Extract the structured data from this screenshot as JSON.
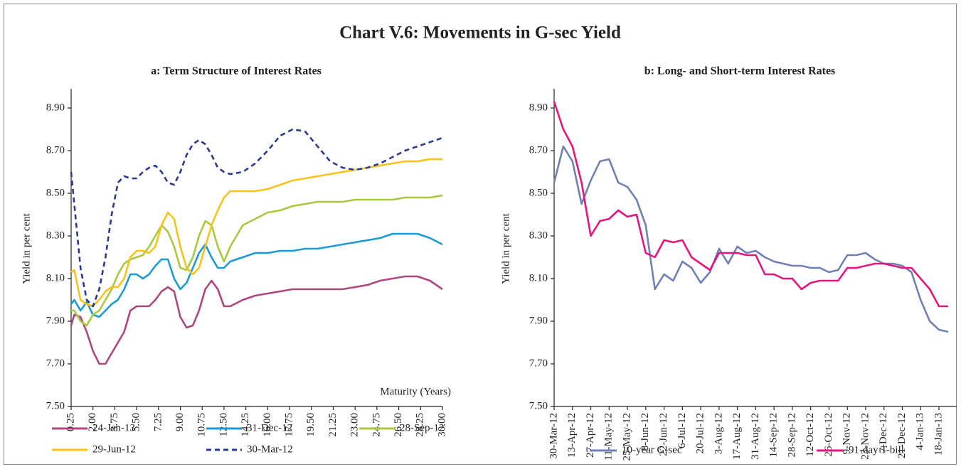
{
  "title": "Chart V.6: Movements in G-sec Yield",
  "chart_data": [
    {
      "type": "line",
      "title": "a: Term Structure of Interest Rates",
      "ylabel": "Yield in per cent",
      "xlabel": "Maturity (Years)",
      "grid": false,
      "xlim": [
        0.25,
        30
      ],
      "ylim": [
        7.5,
        8.9
      ],
      "xticks": [
        0.25,
        {
          "value": 2,
          "label": "2.00"
        },
        3.75,
        {
          "value": 5.5,
          "label": "5.50"
        },
        7.25,
        {
          "value": 9,
          "label": "9.00"
        },
        10.75,
        {
          "value": 12.5,
          "label": "12.50"
        },
        14.25,
        {
          "value": 16,
          "label": "16.00"
        },
        17.75,
        {
          "value": 19.5,
          "label": "19.50"
        },
        21.25,
        {
          "value": 23,
          "label": "23.00"
        },
        24.75,
        {
          "value": 26.5,
          "label": "26.50"
        },
        28.25,
        {
          "value": 30,
          "label": "30.00"
        }
      ],
      "yticks": [
        {
          "value": 7.5,
          "label": "7.50"
        },
        {
          "value": 7.7,
          "label": "7.70"
        },
        {
          "value": 7.9,
          "label": "7.90"
        },
        {
          "value": 8.1,
          "label": "8.10"
        },
        {
          "value": 8.3,
          "label": "8.30"
        },
        {
          "value": 8.5,
          "label": "8.50"
        },
        {
          "value": 8.7,
          "label": "8.70"
        },
        {
          "value": 8.9,
          "label": "8.90"
        }
      ],
      "x": [
        0.25,
        0.5,
        1,
        1.5,
        2,
        2.5,
        3,
        3.5,
        4,
        4.5,
        5,
        5.5,
        6,
        6.5,
        7,
        7.5,
        8,
        8.5,
        9,
        9.5,
        10,
        10.5,
        11,
        11.5,
        12,
        12.5,
        13,
        14,
        15,
        16,
        17,
        18,
        19,
        20,
        21,
        22,
        23,
        24,
        25,
        26,
        27,
        28,
        29,
        30
      ],
      "series": [
        {
          "name": "24-Jan-13",
          "color": "#b0457f",
          "style": "solid",
          "values": [
            7.88,
            7.93,
            7.92,
            7.85,
            7.76,
            7.7,
            7.7,
            7.75,
            7.8,
            7.85,
            7.95,
            7.97,
            7.97,
            7.97,
            8.0,
            8.04,
            8.06,
            8.04,
            7.92,
            7.87,
            7.88,
            7.95,
            8.05,
            8.09,
            8.05,
            7.97,
            7.97,
            8.0,
            8.02,
            8.03,
            8.04,
            8.05,
            8.05,
            8.05,
            8.05,
            8.05,
            8.06,
            8.07,
            8.09,
            8.1,
            8.11,
            8.11,
            8.09,
            8.05
          ]
        },
        {
          "name": "31-Dec-12",
          "color": "#1b9ad6",
          "style": "solid",
          "values": [
            7.98,
            8.0,
            7.95,
            7.99,
            7.93,
            7.92,
            7.95,
            7.98,
            8.0,
            8.05,
            8.12,
            8.12,
            8.1,
            8.12,
            8.16,
            8.19,
            8.19,
            8.1,
            8.05,
            8.08,
            8.15,
            8.22,
            8.26,
            8.2,
            8.15,
            8.15,
            8.18,
            8.2,
            8.22,
            8.22,
            8.23,
            8.23,
            8.24,
            8.24,
            8.25,
            8.26,
            8.27,
            8.28,
            8.29,
            8.31,
            8.31,
            8.31,
            8.29,
            8.26
          ]
        },
        {
          "name": "28-Sep-12",
          "color": "#a8c83e",
          "style": "solid",
          "values": [
            7.95,
            7.95,
            7.9,
            7.88,
            7.93,
            7.95,
            8.0,
            8.05,
            8.12,
            8.17,
            8.19,
            8.2,
            8.21,
            8.25,
            8.3,
            8.35,
            8.32,
            8.25,
            8.15,
            8.14,
            8.2,
            8.3,
            8.37,
            8.35,
            8.25,
            8.18,
            8.25,
            8.35,
            8.38,
            8.41,
            8.42,
            8.44,
            8.45,
            8.46,
            8.46,
            8.46,
            8.47,
            8.47,
            8.47,
            8.47,
            8.48,
            8.48,
            8.48,
            8.49
          ]
        },
        {
          "name": "29-Jun-12",
          "color": "#f8c21c",
          "style": "solid",
          "values": [
            8.13,
            8.14,
            8.0,
            7.98,
            7.97,
            8.0,
            8.04,
            8.06,
            8.06,
            8.1,
            8.2,
            8.23,
            8.23,
            8.22,
            8.25,
            8.35,
            8.41,
            8.38,
            8.25,
            8.15,
            8.12,
            8.15,
            8.25,
            8.35,
            8.42,
            8.48,
            8.51,
            8.51,
            8.51,
            8.52,
            8.54,
            8.56,
            8.57,
            8.58,
            8.59,
            8.6,
            8.61,
            8.62,
            8.63,
            8.64,
            8.65,
            8.65,
            8.66,
            8.66
          ]
        },
        {
          "name": "30-Mar-12",
          "color": "#2b3990",
          "style": "dashed",
          "values": [
            8.6,
            8.45,
            8.15,
            8.0,
            7.97,
            8.05,
            8.2,
            8.4,
            8.55,
            8.58,
            8.57,
            8.57,
            8.6,
            8.62,
            8.63,
            8.6,
            8.55,
            8.54,
            8.6,
            8.68,
            8.73,
            8.75,
            8.73,
            8.68,
            8.62,
            8.6,
            8.59,
            8.6,
            8.64,
            8.7,
            8.77,
            8.8,
            8.79,
            8.72,
            8.65,
            8.62,
            8.61,
            8.62,
            8.64,
            8.67,
            8.7,
            8.72,
            8.74,
            8.76
          ]
        }
      ]
    },
    {
      "type": "line",
      "title": "b: Long- and Short-term Interest Rates",
      "ylabel": "Yield in per cent",
      "grid": false,
      "ylim": [
        7.5,
        8.9
      ],
      "yticks": [
        {
          "value": 7.5,
          "label": "7.50"
        },
        {
          "value": 7.7,
          "label": "7.70"
        },
        {
          "value": 7.9,
          "label": "7.90"
        },
        {
          "value": 8.1,
          "label": "8.10"
        },
        {
          "value": 8.3,
          "label": "8.30"
        },
        {
          "value": 8.5,
          "label": "8.50"
        },
        {
          "value": 8.7,
          "label": "8.70"
        },
        {
          "value": 8.9,
          "label": "8.90"
        }
      ],
      "categories": [
        "30-Mar-12",
        null,
        "13-Apr-12",
        null,
        "27-Apr-12",
        null,
        "11-May-12",
        null,
        "25-May-12",
        null,
        "8-Jun-12",
        null,
        "22-Jun-12",
        null,
        "6-Jul-12",
        null,
        "20-Jul-12",
        null,
        "3-Aug-12",
        null,
        "17-Aug-12",
        null,
        "31-Aug-12",
        null,
        "14-Sep-12",
        null,
        "28-Sep-12",
        null,
        "12-Oct-12",
        null,
        "26-Oct-12",
        null,
        "9-Nov-12",
        null,
        "23-Nov-12",
        null,
        "7-Dec-12",
        null,
        "21-Dec-12",
        null,
        "4-Jan-13",
        null,
        "18-Jan-13",
        null
      ],
      "series": [
        {
          "name": "10-year G-sec",
          "color": "#6f80b4",
          "style": "solid",
          "values": [
            8.55,
            8.72,
            8.65,
            8.45,
            8.56,
            8.65,
            8.66,
            8.55,
            8.53,
            8.47,
            8.35,
            8.05,
            8.12,
            8.09,
            8.18,
            8.15,
            8.08,
            8.13,
            8.24,
            8.17,
            8.25,
            8.22,
            8.23,
            8.2,
            8.18,
            8.17,
            8.16,
            8.16,
            8.15,
            8.15,
            8.13,
            8.14,
            8.21,
            8.21,
            8.22,
            8.19,
            8.17,
            8.17,
            8.16,
            8.13,
            8.0,
            7.9,
            7.86,
            7.85
          ]
        },
        {
          "name": "91-day T-bill",
          "color": "#e5157e",
          "style": "solid",
          "values": [
            8.93,
            8.8,
            8.72,
            8.55,
            8.3,
            8.37,
            8.38,
            8.42,
            8.39,
            8.4,
            8.22,
            8.2,
            8.28,
            8.27,
            8.28,
            8.2,
            8.17,
            8.14,
            8.22,
            8.22,
            8.22,
            8.21,
            8.21,
            8.12,
            8.12,
            8.1,
            8.1,
            8.05,
            8.08,
            8.09,
            8.09,
            8.09,
            8.15,
            8.15,
            8.16,
            8.17,
            8.17,
            8.16,
            8.15,
            8.15,
            8.1,
            8.05,
            7.97,
            7.97
          ]
        }
      ]
    }
  ]
}
